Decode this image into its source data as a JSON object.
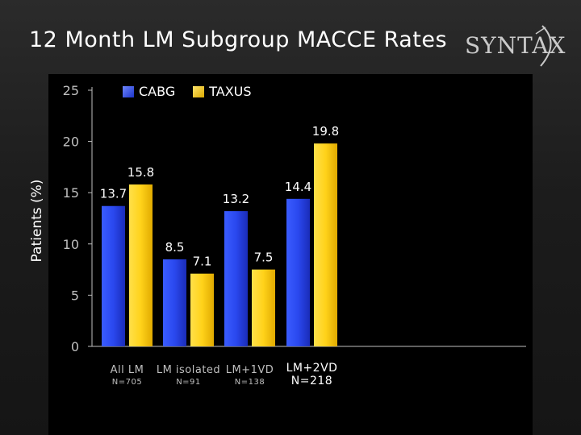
{
  "slide": {
    "title": "12 Month LM Subgroup MACCE Rates",
    "logo_text": "SYNTAX"
  },
  "colors": {
    "cabg": "#2040e0",
    "taxus": "#ffd21a",
    "axis": "#bfbfbf",
    "text": "#ffffff"
  },
  "chart_data": {
    "type": "bar",
    "title": "12 Month LM Subgroup MACCE Rates",
    "ylabel": "Patients (%)",
    "xlabel": "",
    "ylim": [
      0,
      25
    ],
    "yticks": [
      0,
      5,
      10,
      15,
      20,
      25
    ],
    "legend_position": "top-left",
    "categories": [
      "All LM",
      "LM isolated",
      "LM+1VD",
      "LM+2VD"
    ],
    "category_n": [
      "N=705",
      "N=91",
      "N=138",
      "N=218"
    ],
    "series": [
      {
        "name": "CABG",
        "values": [
          13.7,
          8.5,
          13.2,
          14.4
        ]
      },
      {
        "name": "TAXUS",
        "values": [
          15.8,
          7.1,
          7.5,
          19.8
        ]
      }
    ],
    "highlighted_category": 3
  }
}
